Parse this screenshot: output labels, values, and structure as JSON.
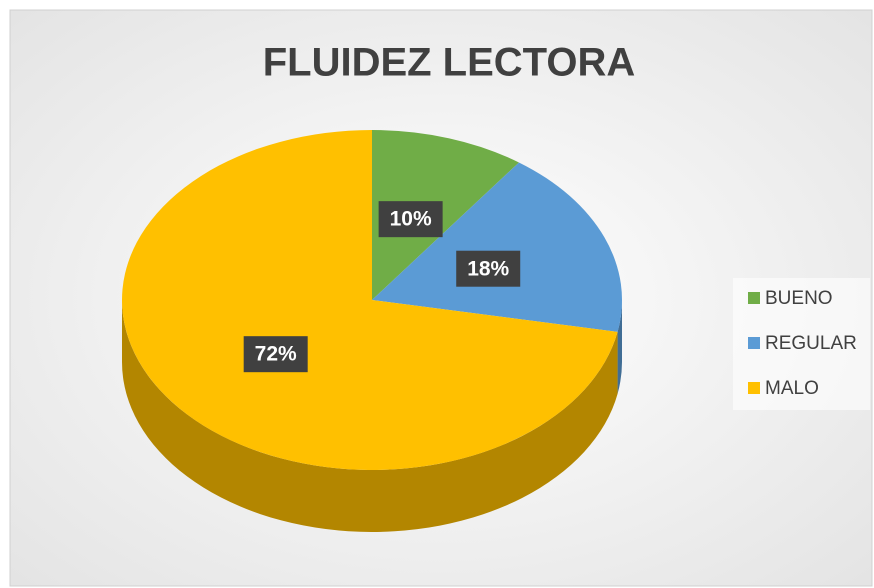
{
  "chart_data": {
    "type": "pie",
    "title": "FLUIDEZ LECTORA",
    "categories": [
      "BUENO",
      "REGULAR",
      "MALO"
    ],
    "values": [
      10,
      18,
      72
    ],
    "value_labels": [
      "10%",
      "18%",
      "72%"
    ],
    "colors": [
      "#70ad47",
      "#5b9bd5",
      "#ffc000"
    ],
    "legend": "right"
  }
}
